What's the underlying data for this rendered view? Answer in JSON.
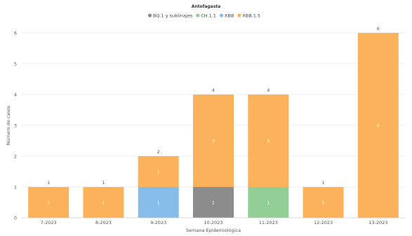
{
  "chart_data": {
    "type": "bar",
    "stacked": true,
    "title": "Antofagasta",
    "xlabel": "Semana Epidemiológica",
    "ylabel": "Número de casos",
    "ylim": [
      0,
      6
    ],
    "yticks": [
      "0",
      "1",
      "2",
      "3",
      "4",
      "5",
      "6"
    ],
    "grid": true,
    "legend_position": "top",
    "categories": [
      "7-2023",
      "8-2023",
      "9-2023",
      "10-2023",
      "11-2023",
      "12-2023",
      "13-2023"
    ],
    "series": [
      {
        "name": "BQ.1 y sublinajes",
        "color": "#8c8c8c",
        "values": [
          0,
          0,
          0,
          1,
          0,
          0,
          0
        ]
      },
      {
        "name": "CH.1.1",
        "color": "#92cf96",
        "values": [
          0,
          0,
          0,
          0,
          1,
          0,
          0
        ]
      },
      {
        "name": "XBB",
        "color": "#86bde8",
        "values": [
          0,
          0,
          1,
          0,
          0,
          0,
          0
        ]
      },
      {
        "name": "XBB.1.5",
        "color": "#fbb25a",
        "values": [
          1,
          1,
          1,
          3,
          3,
          1,
          6
        ]
      }
    ],
    "totals": [
      1,
      1,
      2,
      4,
      4,
      1,
      6
    ]
  }
}
